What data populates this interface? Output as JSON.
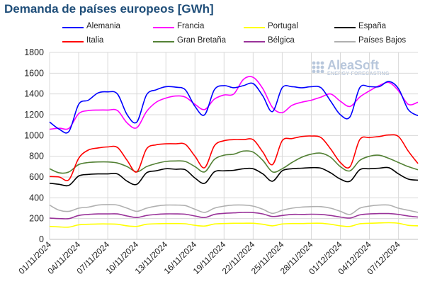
{
  "title": "Demanda de países europeos [GWh]",
  "logo": {
    "name": "AleaSoft",
    "tagline": "ENERGY FORECASTING"
  },
  "chart_data": {
    "type": "line",
    "title": "Demanda de países europeos [GWh]",
    "xlabel": "",
    "ylabel": "",
    "ylim": [
      0,
      1800
    ],
    "yticks": [
      0,
      200,
      400,
      600,
      800,
      1000,
      1200,
      1400,
      1600,
      1800
    ],
    "x_start": "01/11/2024",
    "x_end": "09/12/2024",
    "xtick_labels": [
      "01/11/2024",
      "04/11/2024",
      "07/11/2024",
      "10/11/2024",
      "13/11/2024",
      "16/11/2024",
      "19/11/2024",
      "22/11/2024",
      "25/11/2024",
      "28/11/2024",
      "01/12/2024",
      "04/12/2024",
      "07/12/2024"
    ],
    "grid": true,
    "legend_position": "top",
    "x": [
      "01/11/2024",
      "02/11/2024",
      "03/11/2024",
      "04/11/2024",
      "05/11/2024",
      "06/11/2024",
      "07/11/2024",
      "08/11/2024",
      "09/11/2024",
      "10/11/2024",
      "11/11/2024",
      "12/11/2024",
      "13/11/2024",
      "14/11/2024",
      "15/11/2024",
      "16/11/2024",
      "17/11/2024",
      "18/11/2024",
      "19/11/2024",
      "20/11/2024",
      "21/11/2024",
      "22/11/2024",
      "23/11/2024",
      "24/11/2024",
      "25/11/2024",
      "26/11/2024",
      "27/11/2024",
      "28/11/2024",
      "29/11/2024",
      "30/11/2024",
      "01/12/2024",
      "02/12/2024",
      "03/12/2024",
      "04/12/2024",
      "05/12/2024",
      "06/12/2024",
      "07/12/2024",
      "08/12/2024",
      "09/12/2024"
    ],
    "series": [
      {
        "name": "Alemania",
        "color": "#0000ff",
        "values": [
          1130,
          1060,
          1040,
          1300,
          1340,
          1410,
          1420,
          1400,
          1200,
          1130,
          1390,
          1440,
          1470,
          1465,
          1440,
          1280,
          1200,
          1440,
          1480,
          1460,
          1480,
          1500,
          1380,
          1230,
          1460,
          1470,
          1460,
          1470,
          1460,
          1330,
          1200,
          1180,
          1460,
          1470,
          1470,
          1520,
          1450,
          1250,
          1190
        ]
      },
      {
        "name": "Francia",
        "color": "#ff00ff",
        "values": [
          1060,
          1070,
          1070,
          1210,
          1240,
          1245,
          1245,
          1240,
          1120,
          1075,
          1230,
          1320,
          1360,
          1380,
          1370,
          1300,
          1250,
          1350,
          1390,
          1400,
          1540,
          1560,
          1450,
          1270,
          1220,
          1290,
          1320,
          1340,
          1370,
          1400,
          1330,
          1280,
          1370,
          1430,
          1480,
          1510,
          1430,
          1300,
          1320
        ]
      },
      {
        "name": "Portugal",
        "color": "#ffff00",
        "values": [
          125,
          120,
          118,
          140,
          145,
          148,
          148,
          145,
          130,
          125,
          145,
          150,
          152,
          152,
          150,
          135,
          128,
          148,
          152,
          155,
          155,
          155,
          145,
          130,
          148,
          152,
          152,
          155,
          155,
          145,
          130,
          125,
          150,
          155,
          158,
          160,
          155,
          135,
          130
        ]
      },
      {
        "name": "España",
        "color": "#000000",
        "values": [
          540,
          530,
          520,
          610,
          625,
          630,
          630,
          630,
          560,
          530,
          640,
          660,
          680,
          675,
          670,
          590,
          540,
          650,
          660,
          665,
          680,
          680,
          630,
          560,
          660,
          680,
          685,
          690,
          685,
          640,
          580,
          560,
          670,
          680,
          685,
          690,
          630,
          580,
          570
        ]
      },
      {
        "name": "Italia",
        "color": "#ff0000",
        "values": [
          605,
          600,
          575,
          780,
          860,
          880,
          890,
          885,
          760,
          650,
          870,
          910,
          920,
          920,
          915,
          800,
          690,
          900,
          950,
          960,
          960,
          960,
          840,
          720,
          950,
          970,
          990,
          995,
          980,
          870,
          740,
          700,
          960,
          980,
          990,
          1005,
          990,
          850,
          730
        ]
      },
      {
        "name": "Gran Bretaña",
        "color": "#538135",
        "values": [
          680,
          640,
          650,
          720,
          740,
          745,
          745,
          735,
          700,
          650,
          700,
          730,
          750,
          755,
          750,
          700,
          650,
          770,
          810,
          820,
          850,
          840,
          760,
          650,
          680,
          740,
          790,
          820,
          830,
          790,
          700,
          660,
          760,
          800,
          810,
          780,
          740,
          700,
          670
        ]
      },
      {
        "name": "Bélgica",
        "color": "#993399",
        "values": [
          205,
          200,
          200,
          230,
          240,
          245,
          245,
          245,
          225,
          210,
          230,
          240,
          245,
          245,
          242,
          225,
          210,
          240,
          250,
          255,
          260,
          258,
          245,
          220,
          230,
          240,
          240,
          242,
          240,
          230,
          215,
          205,
          235,
          245,
          248,
          248,
          240,
          225,
          215
        ]
      },
      {
        "name": "Países Bajos",
        "color": "#b0b0b0",
        "values": [
          330,
          280,
          270,
          300,
          310,
          330,
          335,
          330,
          300,
          270,
          300,
          320,
          330,
          330,
          325,
          290,
          260,
          300,
          320,
          330,
          330,
          320,
          290,
          250,
          280,
          300,
          310,
          315,
          315,
          300,
          270,
          240,
          300,
          320,
          330,
          330,
          300,
          280,
          260
        ]
      }
    ]
  }
}
